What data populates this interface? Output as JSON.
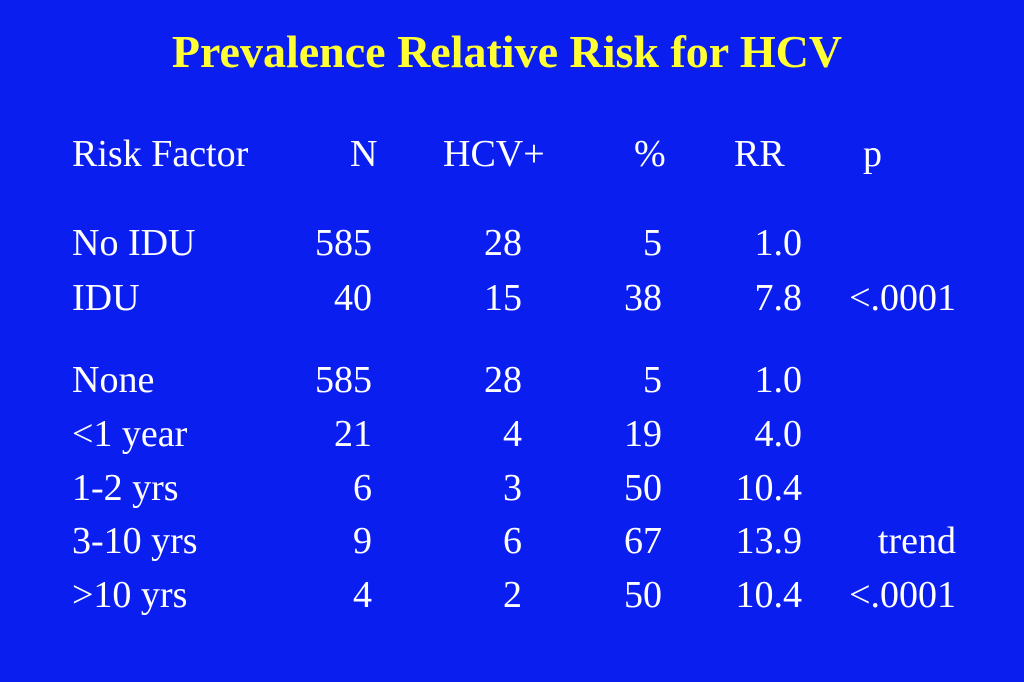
{
  "title": "Prevalence Relative Risk for HCV",
  "headers": {
    "risk_factor": "Risk Factor",
    "n": "N",
    "hcv": "HCV+",
    "pct": "%",
    "rr": "RR",
    "p": "p"
  },
  "group1": [
    {
      "label": "No IDU",
      "n": "585",
      "hcv": "28",
      "pct": "5",
      "rr": "1.0",
      "p": ""
    },
    {
      "label": "IDU",
      "n": "40",
      "hcv": "15",
      "pct": "38",
      "rr": "7.8",
      "p": "<.0001"
    }
  ],
  "group2": [
    {
      "label": "None",
      "n": "585",
      "hcv": "28",
      "pct": "5",
      "rr": "1.0",
      "p": ""
    },
    {
      "label": "<1 year",
      "n": "21",
      "hcv": "4",
      "pct": "19",
      "rr": "4.0",
      "p": ""
    },
    {
      "label": "1-2 yrs",
      "n": "6",
      "hcv": "3",
      "pct": "50",
      "rr": "10.4",
      "p": ""
    },
    {
      "label": "3-10 yrs",
      "n": "9",
      "hcv": "6",
      "pct": "67",
      "rr": "13.9",
      "p": "trend"
    },
    {
      "label": ">10 yrs",
      "n": "4",
      "hcv": "2",
      "pct": "50",
      "rr": "10.4",
      "p": "<.0001"
    }
  ],
  "colors": {
    "background": "#0a1ef0",
    "title": "#ffff33",
    "text": "#ffffff"
  }
}
